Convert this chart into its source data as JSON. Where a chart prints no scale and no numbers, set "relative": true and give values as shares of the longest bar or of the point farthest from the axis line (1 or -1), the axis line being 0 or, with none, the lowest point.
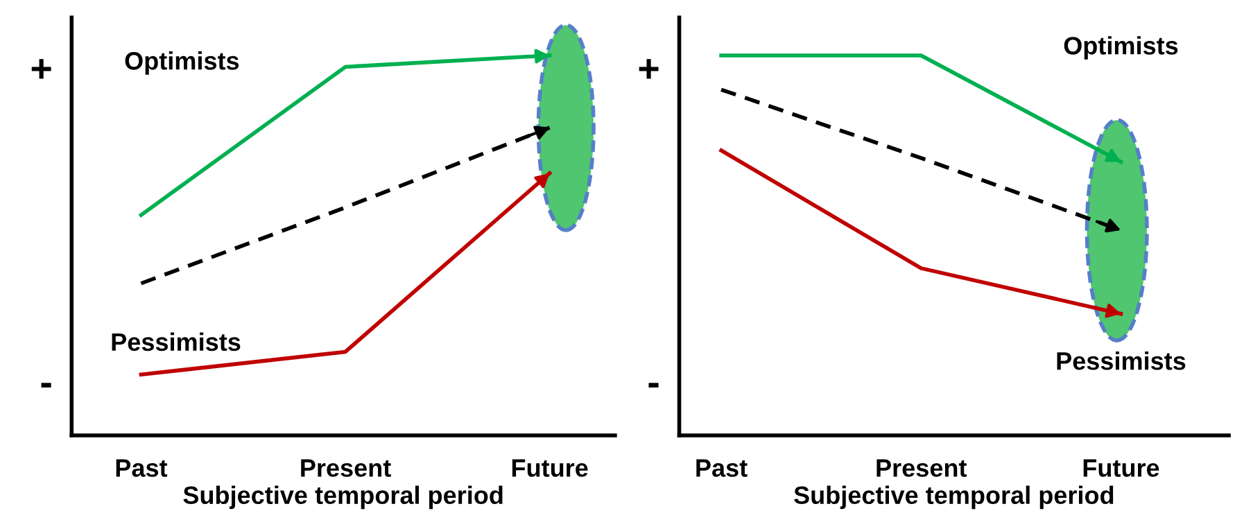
{
  "chart_data": [
    {
      "type": "line",
      "relative": true,
      "categories": [
        "Past",
        "Present",
        "Future"
      ],
      "xlabel": "Subjective temporal period",
      "annotations": [
        "+",
        "-"
      ],
      "marker": "none",
      "legend": false,
      "series": [
        {
          "name": "Optimists",
          "color": "#00b050",
          "values": [
            0.58,
            0.97,
            1.0
          ]
        },
        {
          "color": "#000000",
          "line_style": "dashed",
          "values": [
            0.4,
            0.6,
            0.81
          ]
        },
        {
          "name": "Pessimists",
          "color": "#c00000",
          "values": [
            0.16,
            0.22,
            0.69
          ]
        }
      ]
    },
    {
      "type": "line",
      "relative": true,
      "categories": [
        "Past",
        "Present",
        "Future"
      ],
      "xlabel": "Subjective temporal period",
      "annotations": [
        "+",
        "-"
      ],
      "marker": "none",
      "legend": false,
      "series": [
        {
          "name": "Optimists",
          "color": "#00b050",
          "values": [
            1.0,
            1.0,
            0.72
          ]
        },
        {
          "color": "#000000",
          "line_style": "dashed",
          "values": [
            0.91,
            0.73,
            0.54
          ]
        },
        {
          "name": "Pessimists",
          "color": "#c00000",
          "values": [
            0.75,
            0.44,
            0.32
          ]
        }
      ]
    }
  ]
}
